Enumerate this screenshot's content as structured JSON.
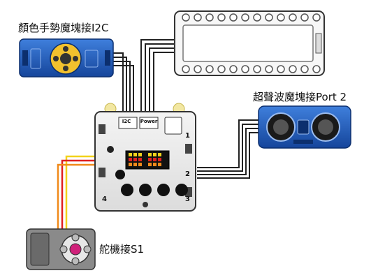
{
  "labels": {
    "color_sensor": "顏色手勢魔塊接I2C",
    "ultrasonic": "超聲波魔塊接Port 2",
    "servo": "舵機接S1"
  },
  "board": {
    "i2c_label": "I2C",
    "power_label": "Power",
    "port_numbers": [
      "1",
      "2",
      "3",
      "4"
    ]
  },
  "colors": {
    "module_blue": "#1f5fbf",
    "wire_black": "#222222",
    "wire_red": "#e02020",
    "wire_yellow": "#f2d21b",
    "wire_orange": "#f08a1a",
    "servo_pink": "#d0217a"
  }
}
